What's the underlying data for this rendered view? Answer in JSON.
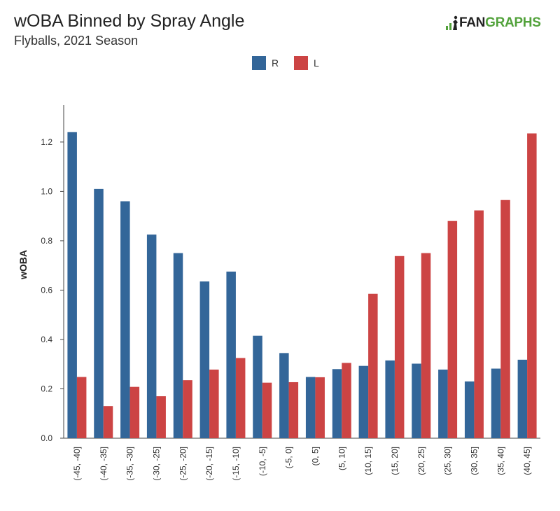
{
  "header": {
    "title": "wOBA Binned by Spray Angle",
    "subtitle": "Flyballs, 2021 Season",
    "logo_text_primary": "FAN",
    "logo_text_secondary": "GRAPHS"
  },
  "colors": {
    "R": "#336699",
    "L": "#cc4444",
    "logo_green": "#52a23b"
  },
  "chart_data": {
    "type": "bar",
    "title": "wOBA Binned by Spray Angle",
    "subtitle": "Flyballs, 2021 Season",
    "xlabel": "",
    "ylabel": "wOBA",
    "ylim": [
      0,
      1.35
    ],
    "yticks": [
      "0.0",
      "0.2",
      "0.4",
      "0.6",
      "0.8",
      "1.0",
      "1.2"
    ],
    "grid": false,
    "legend_position": "top-center",
    "categories": [
      "(-45, -40]",
      "(-40, -35]",
      "(-35, -30]",
      "(-30, -25]",
      "(-25, -20]",
      "(-20, -15]",
      "(-15, -10]",
      "(-10, -5]",
      "(-5, 0]",
      "(0, 5]",
      "(5, 10]",
      "(10, 15]",
      "(15, 20]",
      "(20, 25]",
      "(25, 30]",
      "(30, 35]",
      "(35, 40]",
      "(40, 45]"
    ],
    "series": [
      {
        "name": "R",
        "values": [
          1.24,
          1.01,
          0.96,
          0.825,
          0.75,
          0.635,
          0.675,
          0.415,
          0.345,
          0.248,
          0.28,
          0.293,
          0.315,
          0.302,
          0.278,
          0.23,
          0.282,
          0.318
        ]
      },
      {
        "name": "L",
        "values": [
          0.248,
          0.13,
          0.208,
          0.17,
          0.235,
          0.278,
          0.325,
          0.225,
          0.227,
          0.247,
          0.305,
          0.585,
          0.738,
          0.75,
          0.88,
          0.923,
          0.965,
          1.235
        ]
      }
    ]
  }
}
